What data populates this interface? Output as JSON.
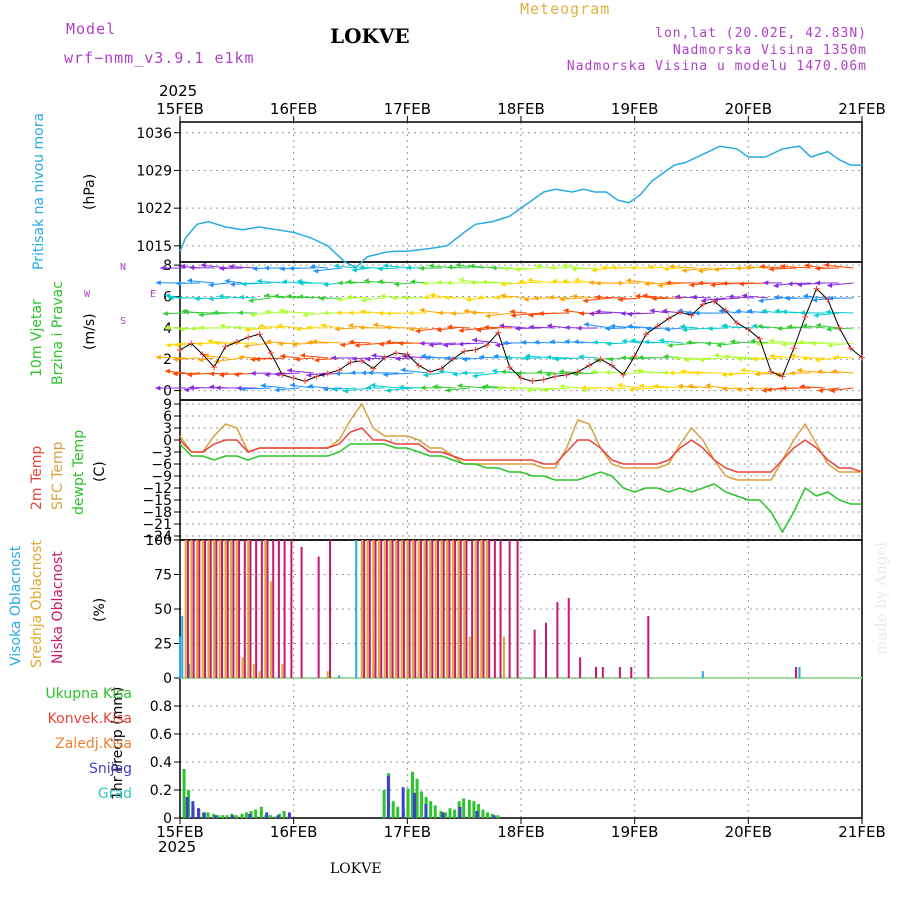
{
  "header": {
    "model_label": "Model",
    "model_name": "wrf−nmm_v3.9.1  e1km",
    "location": "LOKVE",
    "meteogram": "Meteogram",
    "lonlat": "lon,lat (20.02E, 42.83N)",
    "altitude": "Nadmorska Visina 1350m",
    "model_altitude": "Nadmorska Visina u modelu 1470.06m",
    "year_top": "2025",
    "year_bottom": "2025",
    "footer": "LOKVE",
    "made_by": "made by Angel"
  },
  "dates": [
    "15FEB",
    "16FEB",
    "17FEB",
    "18FEB",
    "19FEB",
    "20FEB",
    "21FEB"
  ],
  "panel_labels": {
    "pressure": [
      "Pritisak na nivou mora",
      "(hPa)"
    ],
    "wind": [
      "10m Vjetar",
      "Brzina i Pravac",
      "(m/s)"
    ],
    "wind_compass": [
      "N",
      "W",
      "E",
      "S"
    ],
    "temp": [
      "2m Temp",
      "SFC Temp",
      "dewpt Temp",
      "(C)"
    ],
    "cloud": [
      "Visoka Oblacnost",
      "Srednja Oblacnost",
      "Niska Oblacnost",
      "(%)"
    ],
    "precip_axis": "1hr Precip (mm)",
    "precip_legend": [
      "Ukupna Kisa",
      "Konvek.Kisa",
      "Zaledj.Kisa",
      "Snijeg",
      "Grad"
    ]
  },
  "colors": {
    "pressure": "#29abe2",
    "temp2m": "#e8443a",
    "sfc": "#d8a040",
    "dewpt": "#2cc32c",
    "cloud_high": "#29abe2",
    "cloud_mid": "#e0a830",
    "cloud_low": "#c8186e",
    "precip_total": "#2cc32c",
    "precip_conv": "#e8443a",
    "precip_frz": "#f08030",
    "precip_snow": "#4040d0",
    "precip_hail": "#30c8c0",
    "model_text": "#b040c8"
  },
  "chart_data": [
    {
      "type": "line",
      "name": "pressure",
      "unit": "hPa",
      "yticks": [
        1015,
        1022,
        1029,
        1036
      ],
      "ylim": [
        1012,
        1038
      ],
      "xlim": [
        0,
        6
      ],
      "x": [
        0,
        0.05,
        0.15,
        0.25,
        0.4,
        0.55,
        0.7,
        0.85,
        1.0,
        1.15,
        1.3,
        1.45,
        1.55,
        1.65,
        1.75,
        1.8,
        1.9,
        2.0,
        2.2,
        2.35,
        2.5,
        2.6,
        2.75,
        2.9,
        3.0,
        3.1,
        3.2,
        3.3,
        3.45,
        3.55,
        3.65,
        3.75,
        3.85,
        3.95,
        4.05,
        4.15,
        4.25,
        4.35,
        4.45,
        4.6,
        4.75,
        4.9,
        5.0,
        5.15,
        5.3,
        5.45,
        5.55,
        5.7,
        5.8,
        5.9,
        6.0
      ],
      "values": [
        1014,
        1016.5,
        1019,
        1019.5,
        1018.5,
        1018,
        1018.5,
        1018,
        1017.5,
        1016.5,
        1015,
        1012,
        1011,
        1013,
        1013.5,
        1013.8,
        1014,
        1014,
        1014.5,
        1015,
        1017.5,
        1019,
        1019.5,
        1020.5,
        1022,
        1023.5,
        1025,
        1025.5,
        1025,
        1025.5,
        1025,
        1025,
        1023.5,
        1023,
        1024.5,
        1027,
        1028.5,
        1030,
        1030.5,
        1032,
        1033.5,
        1033,
        1031.5,
        1031.5,
        1033,
        1033.5,
        1031.5,
        1032.5,
        1031,
        1030,
        1030
      ]
    },
    {
      "type": "scatter",
      "name": "wind",
      "unit": "m/s",
      "yticks": [
        0,
        2,
        4,
        6,
        8
      ],
      "ylim": [
        -0.6,
        8.2
      ],
      "xlim": [
        0,
        6
      ],
      "series": [
        {
          "name": "10m Vjetar",
          "x": [
            0,
            0.1,
            0.2,
            0.3,
            0.4,
            0.5,
            0.6,
            0.7,
            0.8,
            0.9,
            1.0,
            1.1,
            1.2,
            1.3,
            1.4,
            1.5,
            1.6,
            1.7,
            1.8,
            1.9,
            2.0,
            2.1,
            2.2,
            2.3,
            2.4,
            2.5,
            2.6,
            2.7,
            2.8,
            2.9,
            3.0,
            3.1,
            3.2,
            3.3,
            3.4,
            3.5,
            3.6,
            3.7,
            3.8,
            3.9,
            4.0,
            4.1,
            4.2,
            4.3,
            4.4,
            4.5,
            4.6,
            4.7,
            4.8,
            4.9,
            5.0,
            5.1,
            5.2,
            5.3,
            5.4,
            5.5,
            5.6,
            5.7,
            5.8,
            5.9,
            6.0
          ],
          "values": [
            2.6,
            3.0,
            2.3,
            1.5,
            2.8,
            3.1,
            3.4,
            3.6,
            2.4,
            1.0,
            0.8,
            0.6,
            0.9,
            1.1,
            1.3,
            1.8,
            1.9,
            1.4,
            2.1,
            2.4,
            2.3,
            1.6,
            1.2,
            1.4,
            2.0,
            2.5,
            2.6,
            2.9,
            3.7,
            1.5,
            0.8,
            0.6,
            0.7,
            0.9,
            1.0,
            1.2,
            1.6,
            2.0,
            1.6,
            1.0,
            2.2,
            3.6,
            4.1,
            4.6,
            5.0,
            4.8,
            5.5,
            5.7,
            5.1,
            4.3,
            3.9,
            3.3,
            1.2,
            0.9,
            2.7,
            4.7,
            6.5,
            5.8,
            4.0,
            2.7,
            2.1
          ]
        }
      ]
    },
    {
      "type": "line",
      "name": "temperature",
      "unit": "C",
      "yticks": [
        9,
        6,
        3,
        0,
        -3,
        -6,
        -9,
        -12,
        -15,
        -18,
        -21,
        -24
      ],
      "ylim": [
        -25,
        10
      ],
      "xlim": [
        0,
        6
      ],
      "x": [
        0,
        0.1,
        0.2,
        0.3,
        0.4,
        0.5,
        0.6,
        0.7,
        0.8,
        0.9,
        1.0,
        1.1,
        1.2,
        1.3,
        1.4,
        1.5,
        1.6,
        1.7,
        1.8,
        1.9,
        2.0,
        2.1,
        2.2,
        2.3,
        2.4,
        2.5,
        2.6,
        2.7,
        2.8,
        2.9,
        3.0,
        3.1,
        3.2,
        3.3,
        3.4,
        3.5,
        3.6,
        3.7,
        3.8,
        3.9,
        4.0,
        4.1,
        4.2,
        4.3,
        4.4,
        4.5,
        4.6,
        4.7,
        4.8,
        4.9,
        5.0,
        5.1,
        5.2,
        5.3,
        5.4,
        5.5,
        5.6,
        5.7,
        5.8,
        5.9,
        6.0
      ],
      "series": [
        {
          "name": "2m Temp",
          "values": [
            0,
            -3,
            -3,
            -1,
            0,
            0,
            -3,
            -2,
            -2,
            -2,
            -2,
            -2,
            -2,
            -2,
            -1,
            2,
            3,
            0,
            0,
            -1,
            -1,
            -1,
            -3,
            -3,
            -4,
            -5,
            -5,
            -5,
            -5,
            -5,
            -5,
            -5,
            -6,
            -6,
            -3,
            0,
            0,
            -2,
            -5,
            -6,
            -6,
            -6,
            -6,
            -5,
            -2,
            0,
            -2,
            -5,
            -7,
            -8,
            -8,
            -8,
            -8,
            -5,
            -2,
            0,
            -2,
            -5,
            -7,
            -7,
            -8
          ]
        },
        {
          "name": "SFC Temp",
          "values": [
            1,
            -3,
            -3,
            1,
            4,
            3,
            -3,
            -2,
            -2,
            -2,
            -2,
            -2,
            -2,
            -2,
            0,
            5,
            9,
            3,
            1,
            1,
            1,
            0,
            -2,
            -2,
            -4,
            -6,
            -6,
            -6,
            -6,
            -6,
            -6,
            -6,
            -7,
            -7,
            -2,
            5,
            4,
            -2,
            -6,
            -7,
            -7,
            -7,
            -7,
            -6,
            -1,
            3,
            0,
            -5,
            -9,
            -10,
            -10,
            -10,
            -10,
            -5,
            0,
            4,
            -1,
            -6,
            -8,
            -8,
            -8
          ]
        },
        {
          "name": "dewpt Temp",
          "values": [
            -1,
            -4,
            -4,
            -5,
            -4,
            -4,
            -5,
            -4,
            -4,
            -4,
            -4,
            -4,
            -4,
            -4,
            -3,
            -1,
            -1,
            -1,
            -1,
            -2,
            -2,
            -3,
            -4,
            -4,
            -5,
            -6,
            -6,
            -7,
            -7,
            -8,
            -8,
            -9,
            -9,
            -10,
            -10,
            -10,
            -9,
            -8,
            -9,
            -12,
            -13,
            -12,
            -12,
            -13,
            -12,
            -13,
            -12,
            -11,
            -13,
            -14,
            -15,
            -15,
            -18,
            -23,
            -18,
            -12,
            -14,
            -13,
            -15,
            -16,
            -16
          ]
        }
      ]
    },
    {
      "type": "bar",
      "name": "cloudiness",
      "unit": "%",
      "yticks": [
        0,
        25,
        50,
        75,
        100
      ],
      "ylim": [
        0,
        100
      ],
      "xlim": [
        0,
        6
      ],
      "series": [
        {
          "name": "Visoka Oblacnost",
          "x": [
            0.0,
            0.02,
            0.08,
            1.4,
            1.55,
            1.6,
            1.65,
            1.7,
            1.75,
            4.6,
            5.45
          ],
          "values": [
            30,
            45,
            10,
            2,
            100,
            100,
            30,
            5,
            3,
            5,
            8
          ]
        },
        {
          "name": "Srednja Oblacnost",
          "x": [
            0.05,
            0.1,
            0.15,
            0.2,
            0.25,
            0.3,
            0.35,
            0.4,
            0.45,
            0.5,
            0.55,
            0.6,
            0.65,
            0.7,
            0.75,
            0.8,
            0.9,
            1.3,
            1.6,
            1.65,
            1.7,
            1.75,
            1.8,
            1.85,
            1.9,
            1.95,
            2.0,
            2.05,
            2.1,
            2.15,
            2.2,
            2.25,
            2.3,
            2.35,
            2.4,
            2.45,
            2.5,
            2.55,
            2.6,
            2.65,
            2.7,
            2.85
          ],
          "values": [
            100,
            100,
            100,
            100,
            100,
            100,
            100,
            100,
            100,
            100,
            15,
            100,
            10,
            5,
            100,
            70,
            10,
            5,
            100,
            100,
            100,
            100,
            100,
            100,
            100,
            100,
            100,
            100,
            100,
            100,
            100,
            100,
            100,
            100,
            100,
            100,
            100,
            30,
            100,
            100,
            100,
            30
          ]
        },
        {
          "name": "Niska Oblacnost",
          "x": [
            0.07,
            0.12,
            0.17,
            0.22,
            0.27,
            0.32,
            0.37,
            0.42,
            0.47,
            0.52,
            0.57,
            0.62,
            0.67,
            0.72,
            0.77,
            0.82,
            0.87,
            0.92,
            0.98,
            1.07,
            1.22,
            1.32,
            1.62,
            1.67,
            1.72,
            1.77,
            1.82,
            1.87,
            1.92,
            1.97,
            2.02,
            2.07,
            2.12,
            2.17,
            2.22,
            2.27,
            2.32,
            2.37,
            2.42,
            2.47,
            2.52,
            2.57,
            2.62,
            2.67,
            2.72,
            2.77,
            2.82,
            2.9,
            2.97,
            3.12,
            3.22,
            3.32,
            3.42,
            3.52,
            3.66,
            3.72,
            3.87,
            3.97,
            4.12,
            5.42
          ],
          "values": [
            100,
            100,
            100,
            100,
            100,
            100,
            100,
            100,
            100,
            100,
            100,
            100,
            100,
            100,
            100,
            100,
            100,
            100,
            100,
            95,
            88,
            100,
            100,
            100,
            100,
            100,
            100,
            100,
            100,
            100,
            100,
            100,
            100,
            100,
            100,
            100,
            100,
            100,
            100,
            100,
            100,
            100,
            100,
            100,
            100,
            100,
            100,
            100,
            100,
            35,
            40,
            55,
            58,
            15,
            8,
            8,
            8,
            8,
            45,
            8
          ]
        }
      ]
    },
    {
      "type": "bar",
      "name": "precipitation",
      "unit": "mm",
      "yticks": [
        0,
        0.2,
        0.4,
        0.6,
        0.8
      ],
      "ylim": [
        0,
        1.0
      ],
      "xlim": [
        0,
        6
      ],
      "series": [
        {
          "name": "Ukupna Kisa",
          "x": [
            0.04,
            0.08,
            0.12,
            0.17,
            0.21,
            0.25,
            0.3,
            0.34,
            0.38,
            0.42,
            0.46,
            0.5,
            0.55,
            0.59,
            0.63,
            0.67,
            0.72,
            0.76,
            0.8,
            0.84,
            0.88,
            0.92,
            0.96,
            1.8,
            1.84,
            1.88,
            1.92,
            1.97,
            2.01,
            2.05,
            2.09,
            2.13,
            2.17,
            2.21,
            2.25,
            2.3,
            2.34,
            2.38,
            2.42,
            2.46,
            2.5,
            2.55,
            2.59,
            2.63,
            2.67,
            2.71,
            2.75,
            2.8
          ],
          "values": [
            0.35,
            0.2,
            0.08,
            0.06,
            0.04,
            0.04,
            0.03,
            0.02,
            0.02,
            0.02,
            0.03,
            0.02,
            0.03,
            0.04,
            0.05,
            0.06,
            0.08,
            0.02,
            0.02,
            0.01,
            0.03,
            0.05,
            0.01,
            0.2,
            0.32,
            0.12,
            0.08,
            0.06,
            0.21,
            0.33,
            0.28,
            0.19,
            0.15,
            0.12,
            0.09,
            0.05,
            0.04,
            0.07,
            0.06,
            0.12,
            0.14,
            0.13,
            0.12,
            0.1,
            0.06,
            0.04,
            0.03,
            0.02
          ]
        },
        {
          "name": "Konvek.Kisa",
          "x": [],
          "values": []
        },
        {
          "name": "Zaledj.Kisa",
          "x": [],
          "values": []
        },
        {
          "name": "Snijeg",
          "x": [
            0.05,
            0.1,
            0.15,
            0.2,
            0.3,
            0.45,
            0.6,
            0.75,
            0.85,
            0.95,
            1.82,
            1.95,
            2.05,
            2.15,
            2.3,
            2.45,
            2.6,
            2.75
          ],
          "values": [
            0.15,
            0.12,
            0.07,
            0.04,
            0.02,
            0.02,
            0.03,
            0.04,
            0.02,
            0.04,
            0.3,
            0.22,
            0.18,
            0.1,
            0.04,
            0.08,
            0.05,
            0.02
          ]
        },
        {
          "name": "Grad",
          "x": [],
          "values": []
        }
      ]
    }
  ]
}
